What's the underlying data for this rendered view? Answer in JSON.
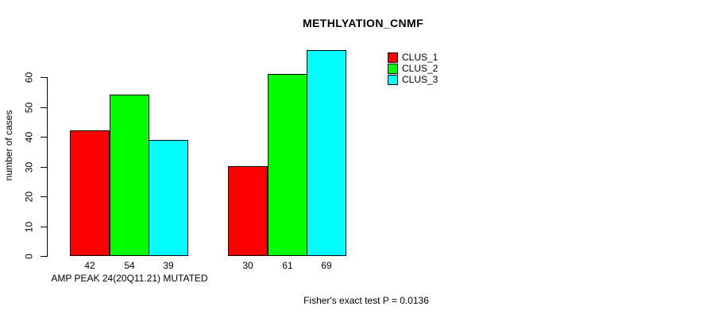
{
  "chart_data": {
    "type": "bar",
    "title": "METHLYATION_CNMF",
    "xlabel": "AMP PEAK 24(20Q11.21) MUTATED",
    "ylabel": "number of cases",
    "footnote": "Fisher's exact test P = 0.0136",
    "grid": false,
    "legend_position": "topright",
    "yticks": [
      0,
      10,
      20,
      30,
      40,
      50,
      60
    ],
    "ylim": [
      0,
      69
    ],
    "num_groups": 2,
    "series": [
      {
        "name": "CLUS_1",
        "color": "#ff0000",
        "values": [
          42,
          30
        ]
      },
      {
        "name": "CLUS_2",
        "color": "#00ff00",
        "values": [
          54,
          61
        ]
      },
      {
        "name": "CLUS_3",
        "color": "#00ffff",
        "values": [
          39,
          69
        ]
      }
    ],
    "bar_value_labels": [
      [
        "42",
        "54",
        "39"
      ],
      [
        "30",
        "61",
        "69"
      ]
    ],
    "legend": {
      "entries": [
        {
          "label": "CLUS_1",
          "color": "#ff0000"
        },
        {
          "label": "CLUS_2",
          "color": "#00ff00"
        },
        {
          "label": "CLUS_3",
          "color": "#00ffff"
        }
      ]
    },
    "axis_color": "#000000",
    "background_color": "#ffffff"
  }
}
